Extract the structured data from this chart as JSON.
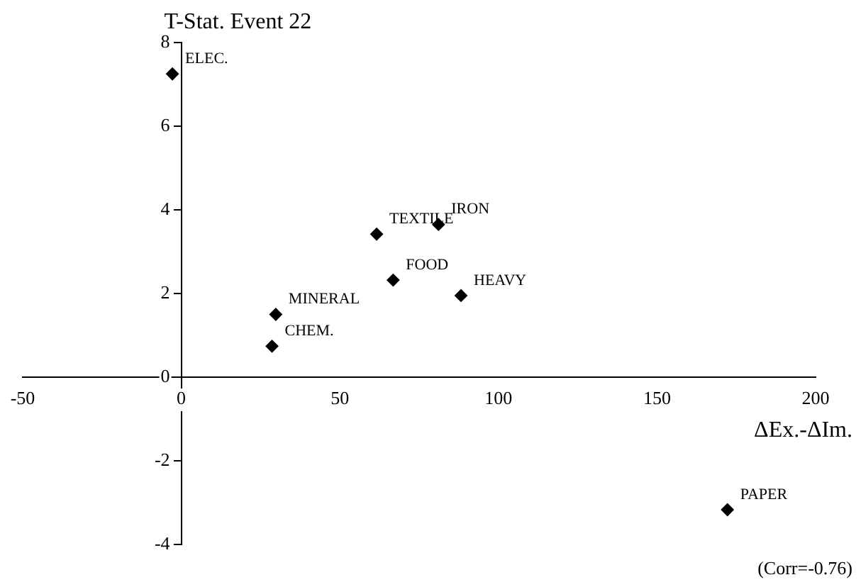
{
  "chart_data": {
    "type": "scatter",
    "ylabel": "T-Stat. Event 22",
    "xlabel": "ΔEx.-ΔIm.",
    "x": [
      -2.8,
      61.6,
      81.1,
      66.8,
      88.2,
      29.8,
      28.6,
      172.2
    ],
    "values": [
      7.25,
      3.42,
      3.65,
      2.32,
      1.95,
      1.5,
      0.74,
      -3.17
    ],
    "color": "#000000",
    "marker": "diamond",
    "grid": false,
    "legend": false,
    "xlim": [
      -50,
      200
    ],
    "xticks": [
      -50,
      0,
      50,
      100,
      150,
      200
    ],
    "ylim": [
      -4,
      8
    ],
    "yticks": [
      -4,
      -2,
      0,
      2,
      4,
      6,
      8
    ],
    "annotations": [
      {
        "text": "ELEC.",
        "x": -2.8,
        "y": 7.25
      },
      {
        "text": "TEXTILE",
        "x": 61.6,
        "y": 3.42
      },
      {
        "text": "IRON",
        "x": 81.1,
        "y": 3.65
      },
      {
        "text": "FOOD",
        "x": 66.8,
        "y": 2.32
      },
      {
        "text": "HEAVY",
        "x": 88.2,
        "y": 1.95
      },
      {
        "text": "MINERAL",
        "x": 29.8,
        "y": 1.5
      },
      {
        "text": "CHEM.",
        "x": 28.6,
        "y": 0.74
      },
      {
        "text": "PAPER",
        "x": 172.2,
        "y": -3.17
      },
      "(Corr=-0.76)"
    ]
  }
}
